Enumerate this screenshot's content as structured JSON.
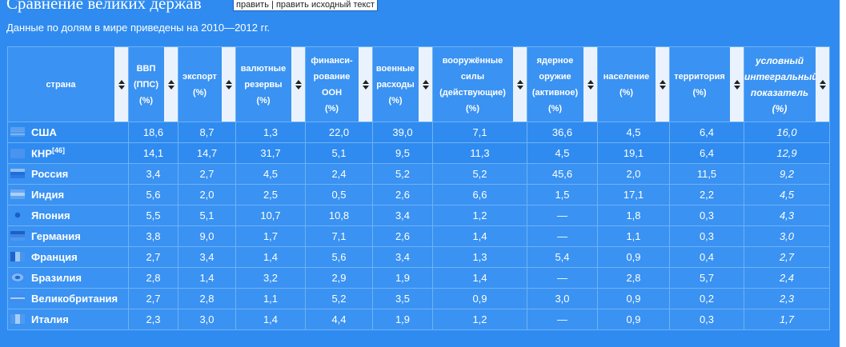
{
  "page": {
    "title": "Сравнение великих держав",
    "edit_link": "править",
    "edit_separator": " | ",
    "edit_source_link": "править исходный текст",
    "note": "Данные по долям в мире приведены на 2010—2012 гг."
  },
  "table": {
    "headers": [
      {
        "lines": [
          "страна"
        ]
      },
      {
        "lines": [
          "ВВП",
          "(ППС)",
          "(%)"
        ]
      },
      {
        "lines": [
          "экспорт",
          "(%)"
        ]
      },
      {
        "lines": [
          "валютные",
          "резервы",
          "(%)"
        ]
      },
      {
        "lines": [
          "финанси-",
          "рование",
          "ООН",
          "(%)"
        ]
      },
      {
        "lines": [
          "военные",
          "расходы",
          "(%)"
        ]
      },
      {
        "lines": [
          "вооружённые",
          "силы",
          "(действующие)",
          "(%)"
        ]
      },
      {
        "lines": [
          "ядерное",
          "оружие",
          "(активное)",
          "(%)"
        ]
      },
      {
        "lines": [
          "население",
          "(%)"
        ]
      },
      {
        "lines": [
          "территория",
          "(%)"
        ]
      },
      {
        "lines": [
          "условный",
          "интегральный",
          "показатель",
          "(%)"
        ]
      }
    ],
    "rows": [
      {
        "country": "США",
        "ref": "",
        "flag": "usa-flag-icon",
        "values": [
          "18,6",
          "8,7",
          "1,3",
          "22,0",
          "39,0",
          "7,1",
          "36,6",
          "4,5",
          "6,4",
          "16,0"
        ]
      },
      {
        "country": "КНР",
        "ref": "[46]",
        "flag": "china-flag-icon",
        "values": [
          "14,1",
          "14,7",
          "31,7",
          "5,1",
          "9,5",
          "11,3",
          "4,5",
          "19,1",
          "6,4",
          "12,9"
        ]
      },
      {
        "country": "Россия",
        "ref": "",
        "flag": "russia-flag-icon",
        "values": [
          "3,4",
          "2,7",
          "4,5",
          "2,4",
          "5,2",
          "5,2",
          "45,6",
          "2,0",
          "11,5",
          "9,2"
        ]
      },
      {
        "country": "Индия",
        "ref": "",
        "flag": "india-flag-icon",
        "values": [
          "5,6",
          "2,0",
          "2,5",
          "0,5",
          "2,6",
          "6,6",
          "1,5",
          "17,1",
          "2,2",
          "4,5"
        ]
      },
      {
        "country": "Япония",
        "ref": "",
        "flag": "japan-flag-icon",
        "values": [
          "5,5",
          "5,1",
          "10,7",
          "10,8",
          "3,4",
          "1,2",
          "—",
          "1,8",
          "0,3",
          "4,3"
        ]
      },
      {
        "country": "Германия",
        "ref": "",
        "flag": "germany-flag-icon",
        "values": [
          "3,8",
          "9,0",
          "1,7",
          "7,1",
          "2,6",
          "1,4",
          "—",
          "1,1",
          "0,3",
          "3,0"
        ]
      },
      {
        "country": "Франция",
        "ref": "",
        "flag": "france-flag-icon",
        "values": [
          "2,7",
          "3,4",
          "1,4",
          "5,6",
          "3,4",
          "1,3",
          "5,4",
          "0,9",
          "0,4",
          "2,7"
        ]
      },
      {
        "country": "Бразилия",
        "ref": "",
        "flag": "brazil-flag-icon",
        "values": [
          "2,8",
          "1,4",
          "3,2",
          "2,9",
          "1,9",
          "1,4",
          "—",
          "2,8",
          "5,7",
          "2,4"
        ]
      },
      {
        "country": "Великобритания",
        "ref": "",
        "flag": "uk-flag-icon",
        "values": [
          "2,7",
          "2,8",
          "1,1",
          "5,2",
          "3,5",
          "0,9",
          "3,0",
          "0,9",
          "0,2",
          "2,3"
        ]
      },
      {
        "country": "Италия",
        "ref": "",
        "flag": "italy-flag-icon",
        "values": [
          "2,3",
          "3,0",
          "1,4",
          "4,4",
          "1,9",
          "1,2",
          "—",
          "0,9",
          "0,3",
          "1,7"
        ]
      }
    ]
  },
  "colors": {
    "background": "#2f8bf0",
    "cell": "#3a92f2",
    "border": "#6fb2f7",
    "sort_button": "#eaf3fd"
  }
}
